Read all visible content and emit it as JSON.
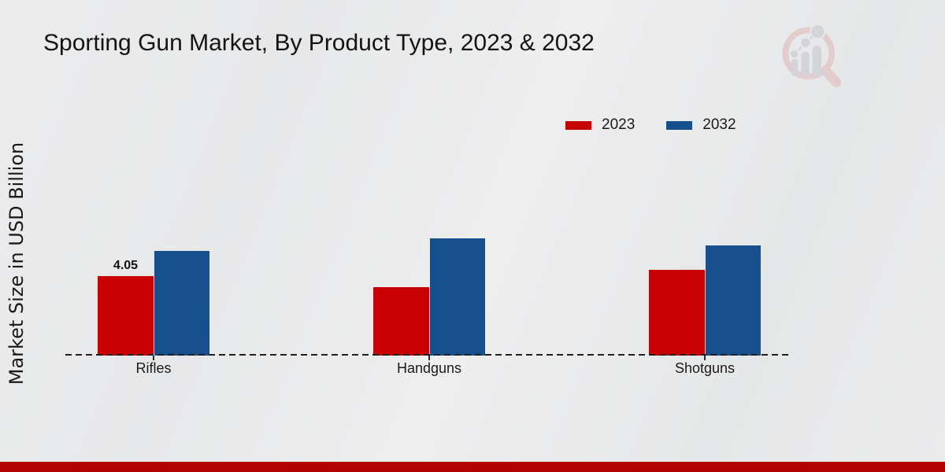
{
  "header": {
    "title": "Sporting Gun Market, By Product Type, 2023 & 2032"
  },
  "logo": {
    "icon": "magnifier-bar-chart-watermark"
  },
  "colors": {
    "series_2023": "#c80202",
    "series_2032": "#16508c",
    "footer_bar": "#b30202",
    "text": "#1a1a1a",
    "baseline": "#1f1f1f"
  },
  "chart_data": {
    "type": "bar",
    "title": "Sporting Gun Market, By Product Type, 2023 & 2032",
    "categories": [
      "Rifles",
      "Handguns",
      "Shotguns"
    ],
    "series": [
      {
        "name": "2023",
        "color": "#c80202",
        "values": [
          4.05,
          3.48,
          4.35
        ],
        "labels": [
          "4.05",
          "",
          ""
        ]
      },
      {
        "name": "2032",
        "color": "#16508c",
        "values": [
          5.32,
          5.96,
          5.6
        ],
        "labels": [
          "",
          "",
          ""
        ]
      }
    ],
    "xlabel": "",
    "ylabel": "Market Size in USD Billion",
    "ylim": [
      0,
      7
    ],
    "grid": false,
    "legend_position": "top-right",
    "baseline_style": "dashed",
    "y_axis_ticks_visible": false
  }
}
